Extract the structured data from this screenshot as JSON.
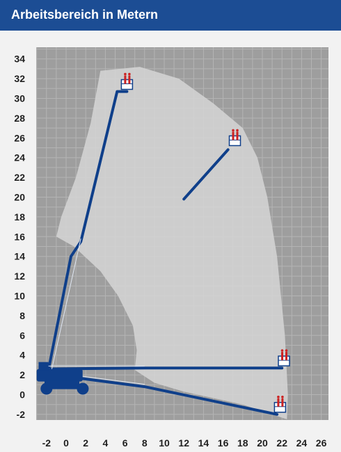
{
  "header": {
    "title": "Arbeitsbereich in Metern"
  },
  "colors": {
    "header_bg": "#1c4d94",
    "grid_bg": "#9e9e9e",
    "grid_line": "#b4b4b4",
    "envelope": "#d4d4d4",
    "boom": "#0f3f8a",
    "basket_accent": "#cc2222"
  },
  "chart_data": {
    "type": "diagram",
    "title": "Arbeitsbereich in Metern",
    "xlabel": "",
    "ylabel": "",
    "xlim": [
      -4,
      27
    ],
    "ylim": [
      -3.5,
      35.5
    ],
    "x_ticks": [
      -2,
      0,
      2,
      4,
      6,
      8,
      10,
      12,
      14,
      16,
      18,
      20,
      22,
      24,
      26
    ],
    "y_ticks": [
      -2,
      0,
      2,
      4,
      6,
      8,
      10,
      12,
      14,
      16,
      18,
      20,
      22,
      24,
      26,
      28,
      30,
      32,
      34
    ],
    "grid": true,
    "envelope_points": [
      [
        3.5,
        32.8
      ],
      [
        7.5,
        33.2
      ],
      [
        11.5,
        32.0
      ],
      [
        15,
        29.5
      ],
      [
        18,
        27
      ],
      [
        19.5,
        24
      ],
      [
        20.5,
        20
      ],
      [
        21.5,
        14
      ],
      [
        22.3,
        6
      ],
      [
        22.6,
        0
      ],
      [
        22.5,
        -2.5
      ],
      [
        21,
        -2
      ],
      [
        18,
        -1
      ],
      [
        12,
        0.3
      ],
      [
        9,
        1.2
      ],
      [
        7,
        2.5
      ],
      [
        7.2,
        4.5
      ],
      [
        6.8,
        7
      ],
      [
        5.3,
        10
      ],
      [
        3.5,
        12.5
      ],
      [
        0.8,
        15
      ],
      [
        -1,
        16
      ],
      [
        -0.5,
        18
      ],
      [
        1,
        22
      ],
      [
        2.5,
        27.5
      ],
      [
        3.5,
        32.8
      ]
    ],
    "booms": [
      {
        "name": "vertical",
        "points": [
          [
            -2.2,
            2.2
          ],
          [
            -1.8,
            2.5
          ],
          [
            0.5,
            14
          ],
          [
            1.5,
            15.5
          ],
          [
            5.2,
            30.7
          ],
          [
            6.2,
            30.7
          ]
        ]
      },
      {
        "name": "diagonal",
        "points": [
          [
            12,
            19.8
          ],
          [
            16.5,
            24.8
          ]
        ]
      },
      {
        "name": "horizontal",
        "points": [
          [
            -2,
            2.6
          ],
          [
            8,
            2.7
          ],
          [
            22,
            2.7
          ]
        ]
      },
      {
        "name": "lower",
        "points": [
          [
            -2,
            2.1
          ],
          [
            8,
            0.8
          ],
          [
            21.5,
            -2
          ]
        ]
      }
    ],
    "baskets": [
      [
        6.2,
        31.2
      ],
      [
        17.2,
        25.5
      ],
      [
        22.2,
        3.2
      ],
      [
        21.8,
        -1.5
      ]
    ]
  }
}
